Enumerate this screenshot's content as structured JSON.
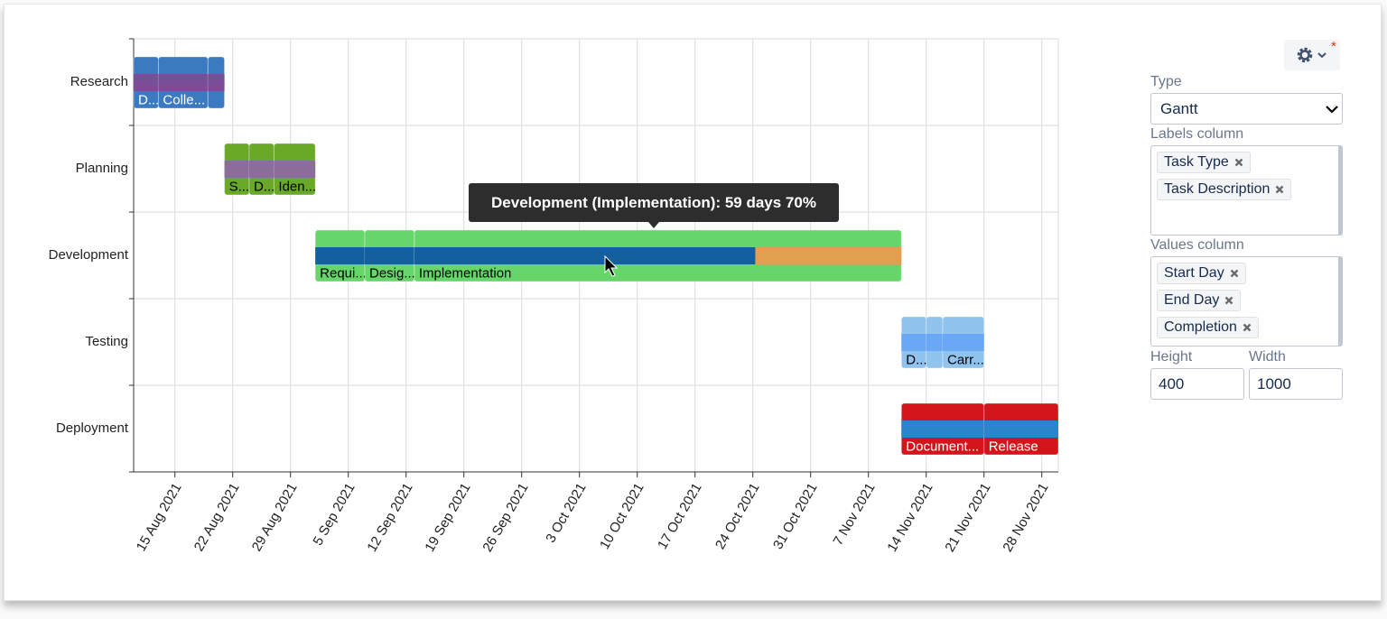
{
  "chart_data": {
    "type": "gantt",
    "xlim": [
      "2021-08-10",
      "2021-11-30"
    ],
    "xticks": [
      {
        "value": "2021-08-15",
        "label": "15 Aug 2021"
      },
      {
        "value": "2021-08-22",
        "label": "22 Aug 2021"
      },
      {
        "value": "2021-08-29",
        "label": "29 Aug 2021"
      },
      {
        "value": "2021-09-05",
        "label": "5 Sep 2021"
      },
      {
        "value": "2021-09-12",
        "label": "12 Sep 2021"
      },
      {
        "value": "2021-09-19",
        "label": "19 Sep 2021"
      },
      {
        "value": "2021-09-26",
        "label": "26 Sep 2021"
      },
      {
        "value": "2021-10-03",
        "label": "3 Oct 2021"
      },
      {
        "value": "2021-10-10",
        "label": "10 Oct 2021"
      },
      {
        "value": "2021-10-17",
        "label": "17 Oct 2021"
      },
      {
        "value": "2021-10-24",
        "label": "24 Oct 2021"
      },
      {
        "value": "2021-10-31",
        "label": "31 Oct 2021"
      },
      {
        "value": "2021-11-07",
        "label": "7 Nov 2021"
      },
      {
        "value": "2021-11-14",
        "label": "14 Nov 2021"
      },
      {
        "value": "2021-11-21",
        "label": "21 Nov 2021"
      },
      {
        "value": "2021-11-28",
        "label": "28 Nov 2021"
      }
    ],
    "grid": true,
    "remaining_color": "#e0a050",
    "series": [
      {
        "name": "Research",
        "color": "#3b79c0",
        "progress_color": "#7a4e96",
        "label_color": "#ffffff",
        "tasks": [
          {
            "label": "D...",
            "start": "2021-08-10",
            "end": "2021-08-13",
            "completion": 100
          },
          {
            "label": "Colle...",
            "start": "2021-08-13",
            "end": "2021-08-19",
            "completion": 100
          },
          {
            "label": null,
            "start": "2021-08-19",
            "end": "2021-08-21",
            "completion": 100
          }
        ]
      },
      {
        "name": "Planning",
        "color": "#6aa82a",
        "progress_color": "#8c6c98",
        "label_color": "#000000",
        "tasks": [
          {
            "label": "S...",
            "start": "2021-08-21",
            "end": "2021-08-24",
            "completion": 100
          },
          {
            "label": "D...",
            "start": "2021-08-24",
            "end": "2021-08-27",
            "completion": 100
          },
          {
            "label": "Iden...",
            "start": "2021-08-27",
            "end": "2021-09-01",
            "completion": 100
          }
        ]
      },
      {
        "name": "Development",
        "color": "#66d66a",
        "progress_color": "#14609e",
        "label_color": "#000000",
        "tasks": [
          {
            "label": "Requi...",
            "start": "2021-09-01",
            "end": "2021-09-07",
            "completion": 100
          },
          {
            "label": "Desig...",
            "start": "2021-09-07",
            "end": "2021-09-13",
            "completion": 100
          },
          {
            "label": "Implementation",
            "start": "2021-09-13",
            "end": "2021-11-11",
            "completion": 70
          }
        ]
      },
      {
        "name": "Testing",
        "color": "#90c4ee",
        "progress_color": "#6aa8f6",
        "label_color": "#000000",
        "tasks": [
          {
            "label": "D...",
            "start": "2021-11-11",
            "end": "2021-11-14",
            "completion": 100
          },
          {
            "label": null,
            "start": "2021-11-14",
            "end": "2021-11-16",
            "completion": 100
          },
          {
            "label": "Carr...",
            "start": "2021-11-16",
            "end": "2021-11-21",
            "completion": 100
          }
        ]
      },
      {
        "name": "Deployment",
        "color": "#d3151b",
        "progress_color": "#2a86cc",
        "label_color": "#ffffff",
        "tasks": [
          {
            "label": "Document...",
            "start": "2021-11-11",
            "end": "2021-11-21",
            "completion": 100
          },
          {
            "label": "Release",
            "start": "2021-11-21",
            "end": "2021-11-30",
            "completion": 100
          }
        ]
      }
    ],
    "tooltip": "Development (Implementation): 59 days 70%"
  },
  "settings": {
    "type_label": "Type",
    "type_value": "Gantt",
    "labels_column_label": "Labels column",
    "labels_columns": [
      "Task Type",
      "Task Description"
    ],
    "values_column_label": "Values column",
    "values_columns": [
      "Start Day",
      "End Day",
      "Completion"
    ],
    "height_label": "Height",
    "height_value": 400,
    "width_label": "Width",
    "width_value": 1000
  }
}
